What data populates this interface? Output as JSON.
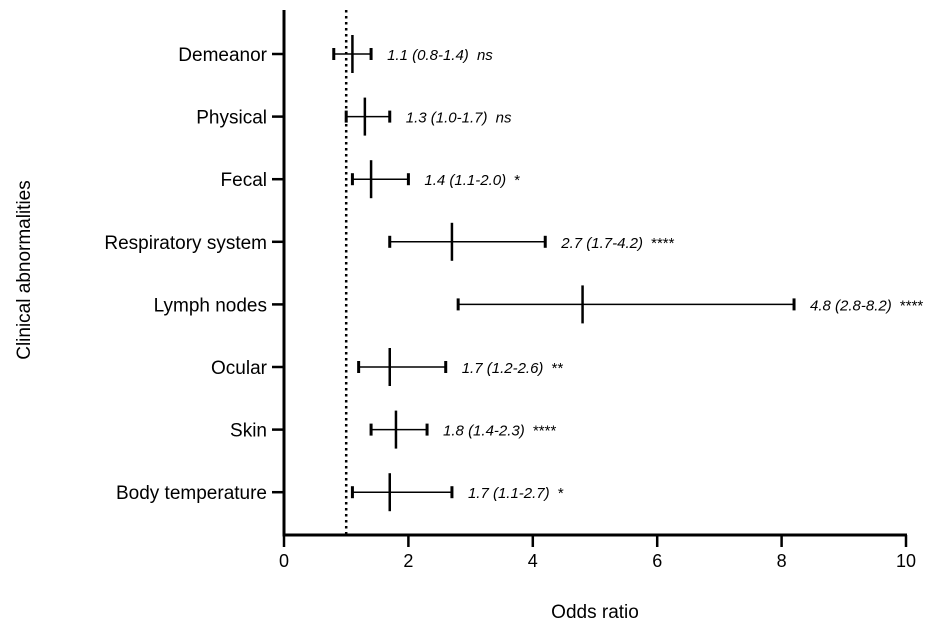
{
  "chart_data": {
    "type": "forest",
    "title": "",
    "xlabel": "Odds ratio",
    "ylabel": "Clinical abnormalities",
    "xlim": [
      0,
      10
    ],
    "xticks": [
      0,
      2,
      4,
      6,
      8,
      10
    ],
    "reference_line": 1,
    "grid": false,
    "legend": "none",
    "colors": {
      "line": "#000000",
      "reference": "#000000"
    },
    "rows": [
      {
        "label": "Demeanor",
        "or": 1.1,
        "lower": 0.8,
        "upper": 1.4,
        "ci_text": "1.1 (0.8-1.4)",
        "sig": "ns",
        "sig_italic": true
      },
      {
        "label": "Physical",
        "or": 1.3,
        "lower": 1.0,
        "upper": 1.7,
        "ci_text": "1.3 (1.0-1.7)",
        "sig": "ns",
        "sig_italic": true
      },
      {
        "label": "Fecal",
        "or": 1.4,
        "lower": 1.1,
        "upper": 2.0,
        "ci_text": "1.4 (1.1-2.0)",
        "sig": "*",
        "sig_italic": false
      },
      {
        "label": "Respiratory system",
        "or": 2.7,
        "lower": 1.7,
        "upper": 4.2,
        "ci_text": "2.7 (1.7-4.2)",
        "sig": "****",
        "sig_italic": false
      },
      {
        "label": "Lymph nodes",
        "or": 4.8,
        "lower": 2.8,
        "upper": 8.2,
        "ci_text": "4.8 (2.8-8.2)",
        "sig": "****",
        "sig_italic": false
      },
      {
        "label": "Ocular",
        "or": 1.7,
        "lower": 1.2,
        "upper": 2.6,
        "ci_text": "1.7 (1.2-2.6)",
        "sig": "**",
        "sig_italic": false
      },
      {
        "label": "Skin",
        "or": 1.8,
        "lower": 1.4,
        "upper": 2.3,
        "ci_text": "1.8 (1.4-2.3)",
        "sig": "****",
        "sig_italic": false
      },
      {
        "label": "Body temperature",
        "or": 1.7,
        "lower": 1.1,
        "upper": 2.7,
        "ci_text": "1.7 (1.1-2.7)",
        "sig": "*",
        "sig_italic": false
      }
    ]
  }
}
